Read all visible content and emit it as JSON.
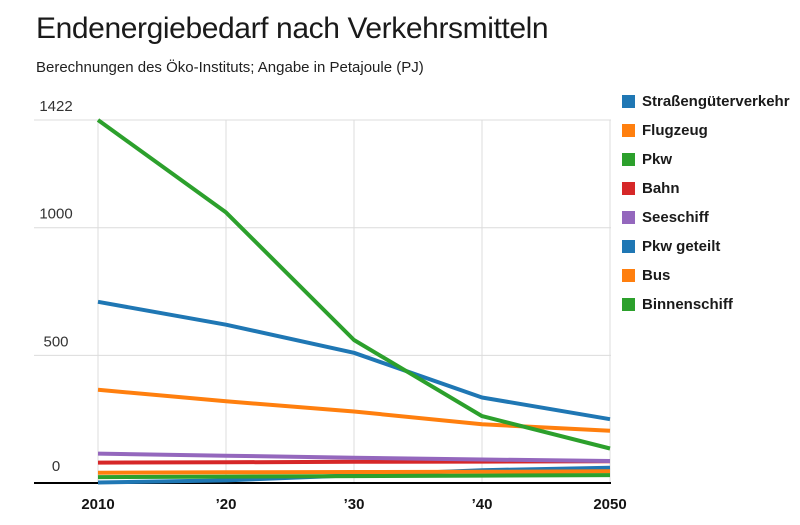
{
  "header": {
    "title": "Endenergiebedarf nach Verkehrsmitteln",
    "subtitle": "Berechnungen des Öko-Instituts; Angabe in Petajoule (PJ)"
  },
  "chart_data": {
    "type": "line",
    "title": "Endenergiebedarf nach Verkehrsmitteln",
    "subtitle": "Berechnungen des Öko-Instituts; Angabe in Petajoule (PJ)",
    "unit": "PJ",
    "x": [
      2010,
      2020,
      2030,
      2040,
      2050
    ],
    "x_tick_labels": [
      "2010",
      "’20",
      "’30",
      "’40",
      "2050"
    ],
    "y_ticks": [
      0,
      500,
      1000,
      1422
    ],
    "ylim": [
      0,
      1422
    ],
    "grid": true,
    "legend_position": "right",
    "series": [
      {
        "name": "Straßengüterverkehr",
        "color": "#1f77b4",
        "values": [
          710,
          620,
          510,
          335,
          250
        ]
      },
      {
        "name": "Flugzeug",
        "color": "#ff7f0e",
        "values": [
          365,
          320,
          280,
          230,
          205
        ]
      },
      {
        "name": "Pkw",
        "color": "#2ca02c",
        "values": [
          1422,
          1060,
          560,
          262,
          135
        ]
      },
      {
        "name": "Bahn",
        "color": "#d62728",
        "values": [
          80,
          81,
          83,
          84,
          85
        ]
      },
      {
        "name": "Seeschiff",
        "color": "#9467bd",
        "values": [
          115,
          107,
          99,
          92,
          86
        ]
      },
      {
        "name": "Pkw geteilt",
        "color": "#1f77b4",
        "values": [
          2,
          10,
          30,
          50,
          60
        ]
      },
      {
        "name": "Bus",
        "color": "#ff7f0e",
        "values": [
          40,
          42,
          43,
          44,
          46
        ]
      },
      {
        "name": "Binnenschiff",
        "color": "#2ca02c",
        "values": [
          23,
          25,
          27,
          29,
          31
        ]
      }
    ]
  },
  "colors": {
    "grid": "#dcdcdc",
    "baseline": "#000000",
    "axis_text": "#333333",
    "x_axis_text": "#141414",
    "title_text": "#1a1a1a"
  }
}
